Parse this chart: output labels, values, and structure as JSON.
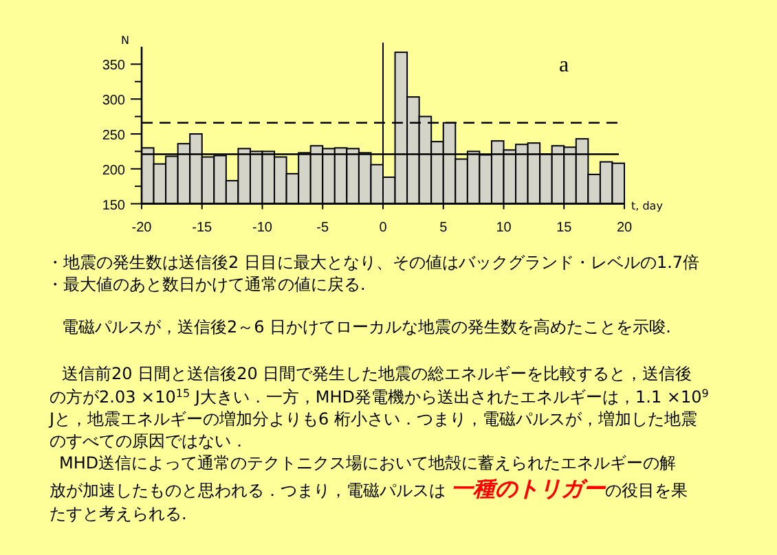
{
  "chart_data": {
    "type": "bar",
    "xlabel": "t, day",
    "ylabel": "N",
    "x": [
      -19.5,
      -18.5,
      -17.5,
      -16.5,
      -15.5,
      -14.5,
      -13.5,
      -12.5,
      -11.5,
      -10.5,
      -9.5,
      -8.5,
      -7.5,
      -6.5,
      -5.5,
      -4.5,
      -3.5,
      -2.5,
      -1.5,
      -0.5,
      0.5,
      1.5,
      2.5,
      3.5,
      4.5,
      5.5,
      6.5,
      7.5,
      8.5,
      9.5,
      10.5,
      11.5,
      12.5,
      13.5,
      14.5,
      15.5,
      16.5,
      17.5,
      18.5,
      19.5
    ],
    "values": [
      230,
      207,
      218,
      236,
      250,
      217,
      219,
      183,
      229,
      225,
      225,
      217,
      193,
      223,
      233,
      229,
      230,
      229,
      223,
      206,
      188,
      367,
      303,
      275,
      239,
      266,
      214,
      225,
      220,
      240,
      227,
      235,
      237,
      221,
      233,
      231,
      243,
      192,
      210,
      208
    ],
    "color": "#d4d4c8",
    "xlim": [
      -20,
      20
    ],
    "xticks": [
      -20,
      -15,
      -10,
      -5,
      0,
      5,
      10,
      15,
      20
    ],
    "ylim": [
      150,
      375
    ],
    "yticks": [
      150,
      {
        "value": 175,
        "label": null
      },
      200,
      {
        "value": 225,
        "label": null
      },
      250,
      {
        "value": 275,
        "label": null
      },
      300,
      {
        "value": 325,
        "label": null
      },
      350
    ],
    "ref_lines": [
      {
        "axis": "y",
        "value": 266,
        "line_style": "dashed"
      },
      {
        "axis": "y",
        "value": 221,
        "line_style": "solid"
      },
      {
        "axis": "x",
        "value": 0,
        "line_style": "solid"
      }
    ],
    "annotations": [
      "a",
      "・地震の発生数は送信後2 日目に最大となり、その値はバックグランド・レベルの1.7倍",
      "・最大値のあと数日かけて通常の値に戻る.",
      "電磁パルスが，送信後2～6 日かけてローカルな地震の発生数を高めたことを示唆.",
      "送信前20 日間と送信後20 日間で発生した地震の総エネルギーを比較すると，送信後",
      "の方が2.03 ×10$^{15}$ J大きい．一方，MHD発電機から送出されたエネルギーは，1.1 ×10$^{9}$",
      "Jと，地震エネルギーの増加分よりも6 桁小さい．つまり，電磁パルスが，増加した地震",
      "のすべての原因ではない．",
      "MHD送信によって通常のテクトニクス場において地殻に蓄えられたエネルギーの解",
      "放が加速したものと思われる．つまり，電磁パルスは ",
      "一種のトリガー",
      "の役目を果",
      "たすと考えられる."
    ]
  }
}
